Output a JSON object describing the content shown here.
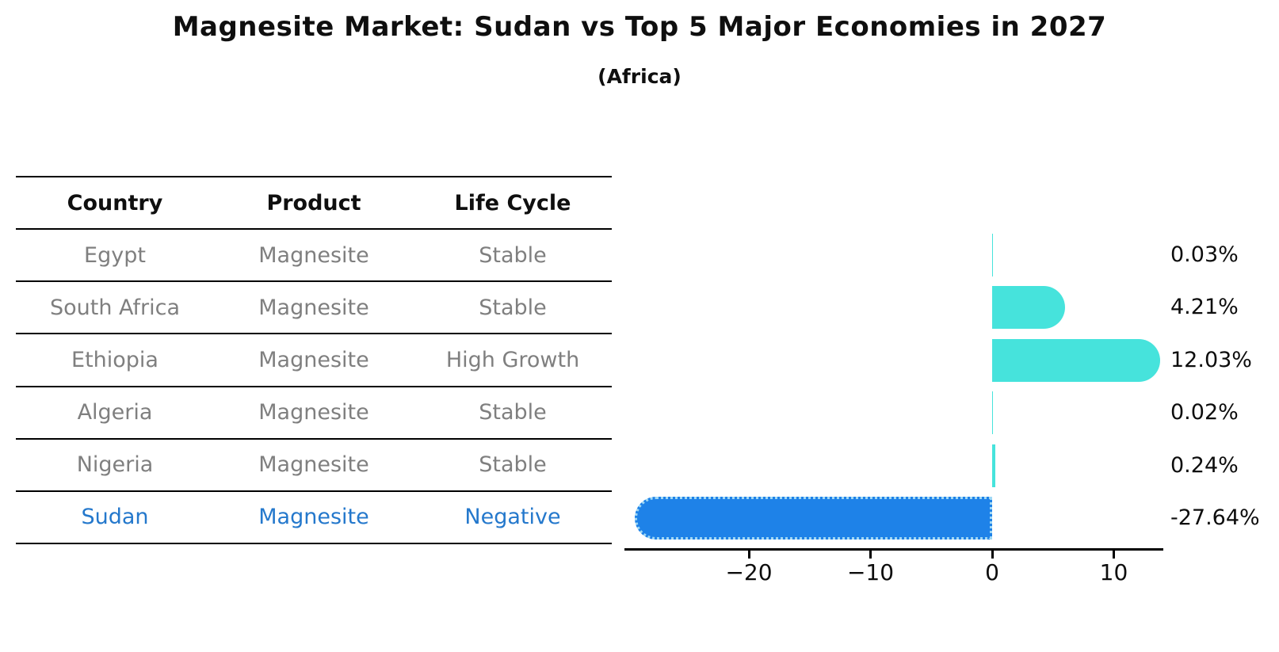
{
  "title": "Magnesite Market: Sudan vs Top 5 Major Economies in 2027",
  "subtitle": "(Africa)",
  "table": {
    "headers": [
      "Country",
      "Product",
      "Life Cycle"
    ],
    "rows": [
      {
        "country": "Egypt",
        "product": "Magnesite",
        "life_cycle": "Stable",
        "highlight": false
      },
      {
        "country": "South Africa",
        "product": "Magnesite",
        "life_cycle": "Stable",
        "highlight": false
      },
      {
        "country": "Ethiopia",
        "product": "Magnesite",
        "life_cycle": "High Growth",
        "highlight": false
      },
      {
        "country": "Algeria",
        "product": "Magnesite",
        "life_cycle": "Stable",
        "highlight": false
      },
      {
        "country": "Nigeria",
        "product": "Magnesite",
        "life_cycle": "Stable",
        "highlight": false
      },
      {
        "country": "Sudan",
        "product": "Magnesite",
        "life_cycle": "Negative",
        "highlight": true
      }
    ]
  },
  "chart_data": {
    "type": "bar",
    "orientation": "horizontal",
    "categories": [
      "Egypt",
      "South Africa",
      "Ethiopia",
      "Algeria",
      "Nigeria",
      "Sudan"
    ],
    "values": [
      0.03,
      4.21,
      12.03,
      0.02,
      0.24,
      -27.64
    ],
    "value_labels": [
      "0.03%",
      "4.21%",
      "12.03%",
      "0.02%",
      "0.24%",
      "-27.64%"
    ],
    "highlight_category": "Sudan",
    "xticks": [
      -20,
      -10,
      0,
      10
    ],
    "xtick_labels": [
      "−20",
      "−10",
      "0",
      "10"
    ],
    "xlim": [
      -30.2,
      14.1
    ],
    "grid": false,
    "legend": null,
    "colors": {
      "bar_default": "#46e3dc",
      "bar_highlight": "#1e82e8",
      "bar_highlight_border": "#9fd8f5",
      "highlight_text": "#2478cc",
      "row_text": "#7f7f7f",
      "axis": "#000000"
    }
  }
}
